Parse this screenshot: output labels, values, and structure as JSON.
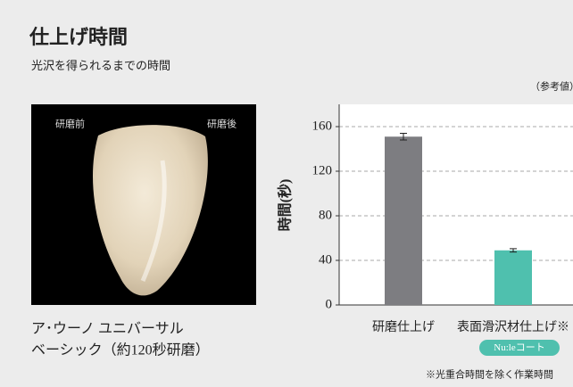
{
  "header": {
    "title": "仕上げ時間",
    "subtitle": "光沢を得られるまでの時間"
  },
  "product": {
    "before_label": "研磨前",
    "after_label": "研磨後",
    "name_line1": "ア･ウーノ ユニバーサル",
    "name_line2": "ベーシック（約120秒研磨）"
  },
  "chart_data": {
    "type": "bar",
    "note": "（参考値）",
    "y_label": "時間(秒)",
    "categories": [
      "研磨仕上げ",
      "表面滑沢材仕上げ※"
    ],
    "values": [
      151,
      49
    ],
    "errors": [
      3,
      1.5
    ],
    "colors": [
      "#7d7d81",
      "#4fc0ae"
    ],
    "ylim": [
      0,
      180
    ],
    "yticks": [
      0,
      40,
      80,
      120,
      160
    ],
    "grid": true,
    "badge": "Nu:leコート",
    "footnote": "※光重合時間を除く作業時間"
  }
}
